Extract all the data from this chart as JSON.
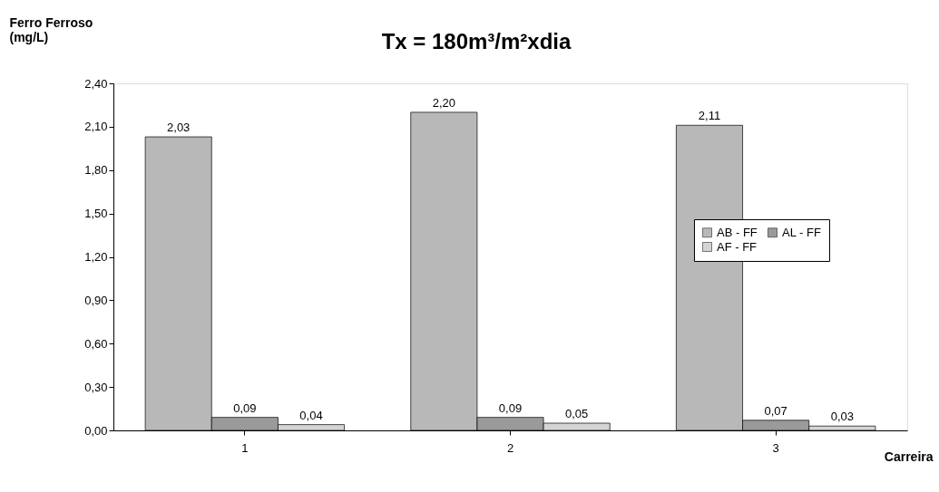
{
  "chart_data": {
    "type": "bar",
    "title": "Tx = 180m³/m²xdia",
    "ylabel": "Ferro Ferroso\n(mg/L)",
    "xlabel": "Carreira",
    "categories": [
      "1",
      "2",
      "3"
    ],
    "series": [
      {
        "name": "AB - FF",
        "color": "#b8b8b8",
        "values": [
          2.03,
          2.2,
          2.11
        ],
        "value_labels": [
          "2,03",
          "2,20",
          "2,11"
        ]
      },
      {
        "name": "AL - FF",
        "color": "#9a9a9a",
        "values": [
          0.09,
          0.09,
          0.07
        ],
        "value_labels": [
          "0,09",
          "0,09",
          "0,07"
        ]
      },
      {
        "name": "AF - FF",
        "color": "#d4d4d4",
        "values": [
          0.04,
          0.05,
          0.03
        ],
        "value_labels": [
          "0,04",
          "0,05",
          "0,03"
        ]
      }
    ],
    "ylim": [
      0,
      2.4
    ],
    "yticks": [
      {
        "value": 0,
        "label": "0,00"
      },
      {
        "value": 0.3,
        "label": "0,30"
      },
      {
        "value": 0.6,
        "label": "0,60"
      },
      {
        "value": 0.9,
        "label": "0,90"
      },
      {
        "value": 1.2,
        "label": "1,20"
      },
      {
        "value": 1.5,
        "label": "1,50"
      },
      {
        "value": 1.8,
        "label": "1,80"
      },
      {
        "value": 2.1,
        "label": "2,10"
      },
      {
        "value": 2.4,
        "label": "2,40"
      }
    ],
    "grid": false,
    "legend": "right"
  }
}
